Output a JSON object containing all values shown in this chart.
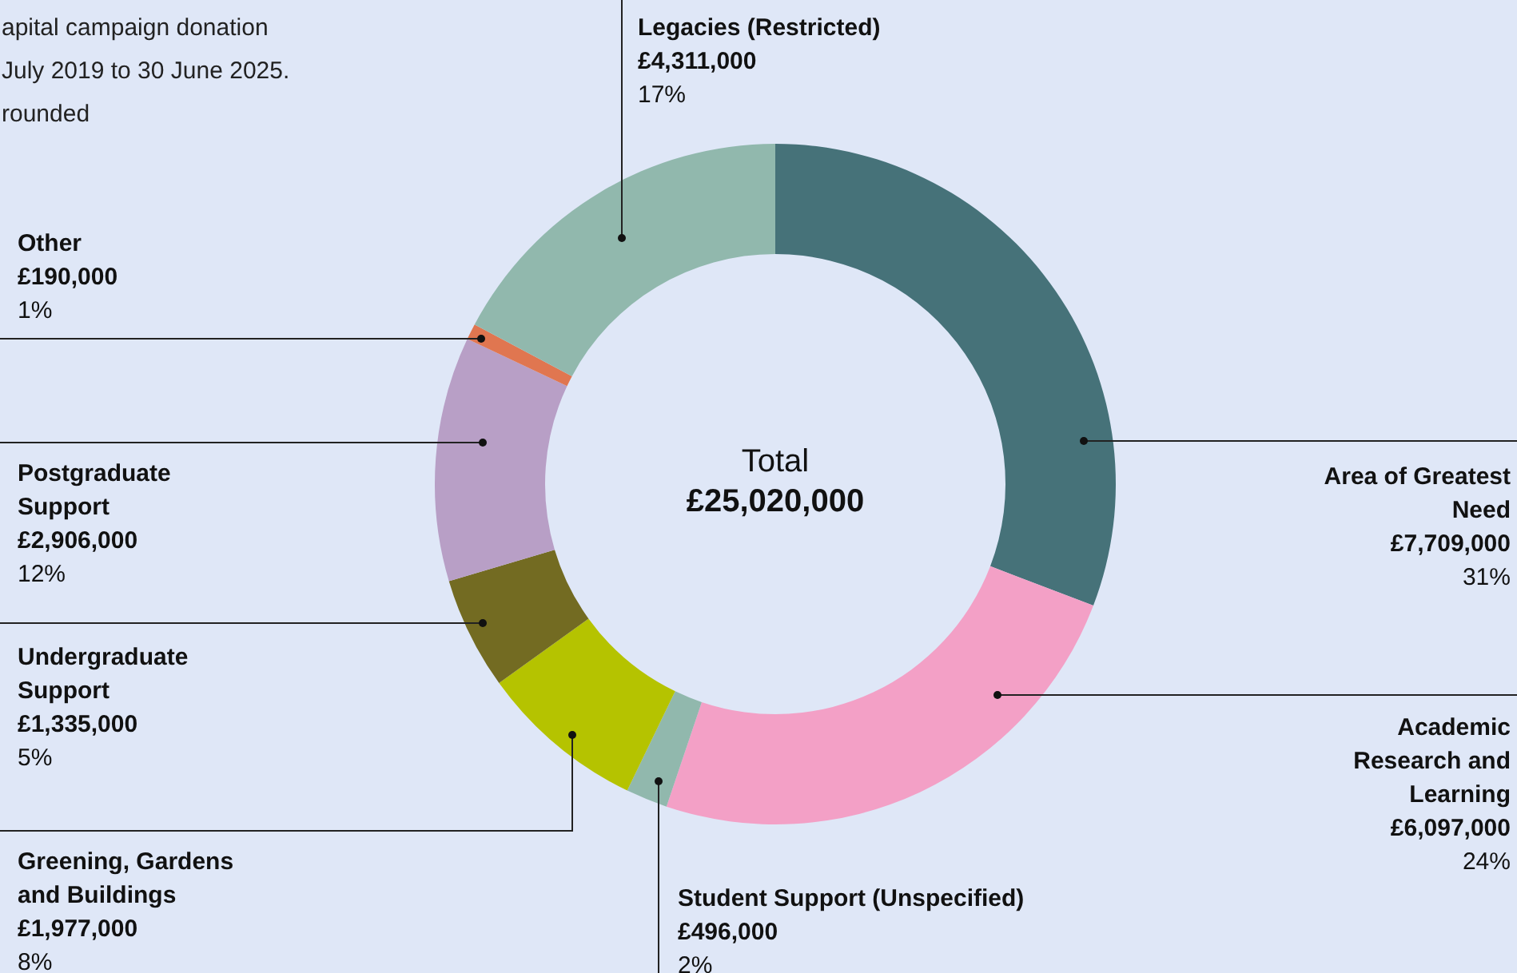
{
  "chart_data": {
    "type": "donut",
    "categories": [
      "Area of Greatest Need",
      "Academic Research and Learning",
      "Student Support (Unspecified)",
      "Greening, Gardens and Buildings",
      "Undergraduate Support",
      "Postgraduate Support",
      "Other",
      "Legacies (Restricted)"
    ],
    "values": [
      7709000,
      6097000,
      496000,
      1977000,
      1335000,
      2906000,
      190000,
      4311000
    ],
    "colors": [
      "#467279",
      "#f3a0c6",
      "#91b8ad",
      "#b5c300",
      "#736b22",
      "#b89fc6",
      "#e07650",
      "#91b8ad"
    ],
    "value_labels": [
      "£7,709,000\n31%",
      "£6,097,000\n24%",
      "£496,000\n2%",
      "£1,977,000\n8%",
      "£1,335,000\n5%",
      "£2,906,000\n12%",
      "£190,000\n1%",
      "£4,311,000\n17%"
    ],
    "annotations": [
      "apital campaign donation\nJuly 2019 to 30 June 2025.\nrounded",
      "Total\n£25,020,000"
    ],
    "legend": false
  }
}
